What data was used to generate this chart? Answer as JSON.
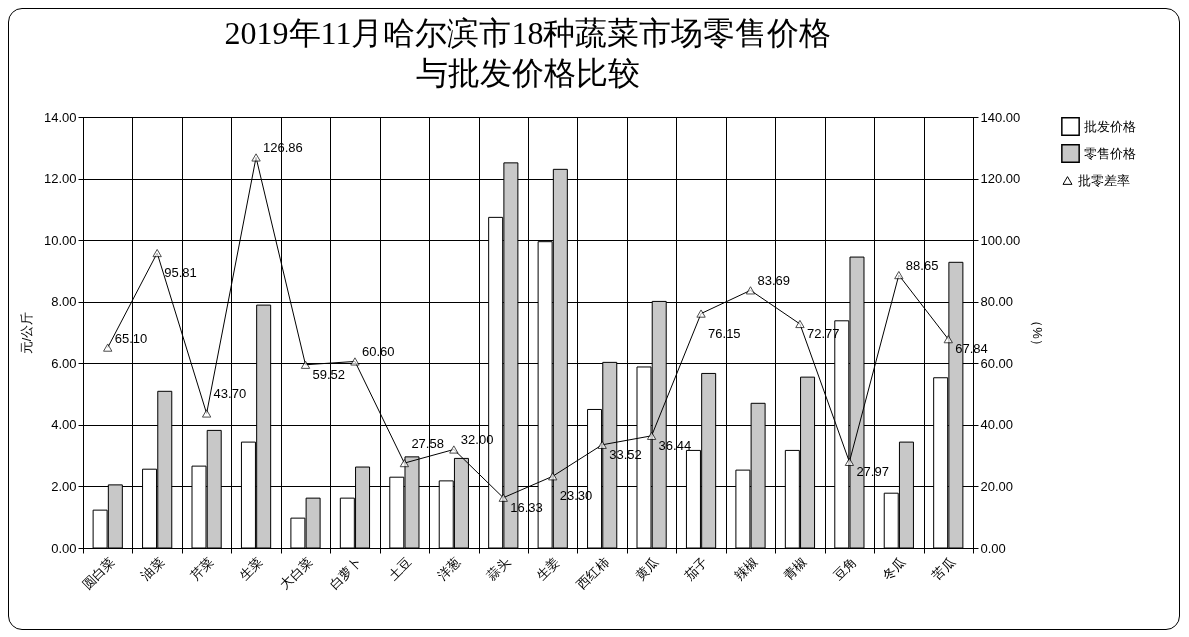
{
  "chart_data": {
    "type": "bar",
    "title": "2019年11月哈尔滨市18种蔬菜市场零售价格与批发价格比较",
    "ylabel": "元/公斤",
    "y2label": "（%）",
    "categories": [
      "圆白菜",
      "油菜",
      "芹菜",
      "生菜",
      "大白菜",
      "白萝卜",
      "土豆",
      "洋葱",
      "蒜头",
      "生姜",
      "西红柿",
      "黄瓜",
      "茄子",
      "辣椒",
      "青椒",
      "豆角",
      "冬瓜",
      "苦瓜"
    ],
    "series": [
      {
        "name": "批发价格",
        "color": "#ffffff",
        "values": [
          1.23,
          2.56,
          2.66,
          3.44,
          0.97,
          1.62,
          2.3,
          2.18,
          10.74,
          9.95,
          4.5,
          5.88,
          3.17,
          2.53,
          3.17,
          7.38,
          1.78,
          5.53
        ]
      },
      {
        "name": "零售价格",
        "color": "#c8c8c8",
        "values": [
          2.05,
          5.09,
          3.82,
          7.89,
          1.62,
          2.63,
          2.96,
          2.91,
          12.51,
          12.3,
          6.03,
          8.01,
          5.67,
          4.7,
          5.55,
          9.45,
          3.44,
          9.28
        ]
      },
      {
        "name": "批零差率",
        "type": "line",
        "axis": "y2",
        "color": "#000000",
        "marker": "triangle",
        "values": [
          65.1,
          95.81,
          43.7,
          126.86,
          59.52,
          60.6,
          27.58,
          32.0,
          16.33,
          23.3,
          33.52,
          36.44,
          76.15,
          83.69,
          72.77,
          27.97,
          88.65,
          67.84
        ],
        "value_labels": [
          "65.10",
          "95.81",
          "43.70",
          "126.86",
          "59.52",
          "60.60",
          "27.58",
          "32.00",
          "16.33",
          "23.30",
          "33.52",
          "36.44",
          "76.15",
          "83.69",
          "72.77",
          "27.97",
          "88.65",
          "67.84"
        ]
      }
    ],
    "ylim": [
      0,
      14
    ],
    "yticks": [
      {
        "value": 0,
        "label": "0.00"
      },
      {
        "value": 2,
        "label": "2.00"
      },
      {
        "value": 4,
        "label": "4.00"
      },
      {
        "value": 6,
        "label": "6.00"
      },
      {
        "value": 8,
        "label": "8.00"
      },
      {
        "value": 10,
        "label": "10.00"
      },
      {
        "value": 12,
        "label": "12.00"
      },
      {
        "value": 14,
        "label": "14.00"
      }
    ],
    "y2lim": [
      0,
      140
    ],
    "y2ticks": [
      {
        "value": 0,
        "label": "0.00"
      },
      {
        "value": 20,
        "label": "20.00"
      },
      {
        "value": 40,
        "label": "40.00"
      },
      {
        "value": 60,
        "label": "60.00"
      },
      {
        "value": 80,
        "label": "80.00"
      },
      {
        "value": 100,
        "label": "100.00"
      },
      {
        "value": 120,
        "label": "120.00"
      },
      {
        "value": 140,
        "label": "140.00"
      }
    ],
    "grid": true,
    "legend": "right"
  }
}
